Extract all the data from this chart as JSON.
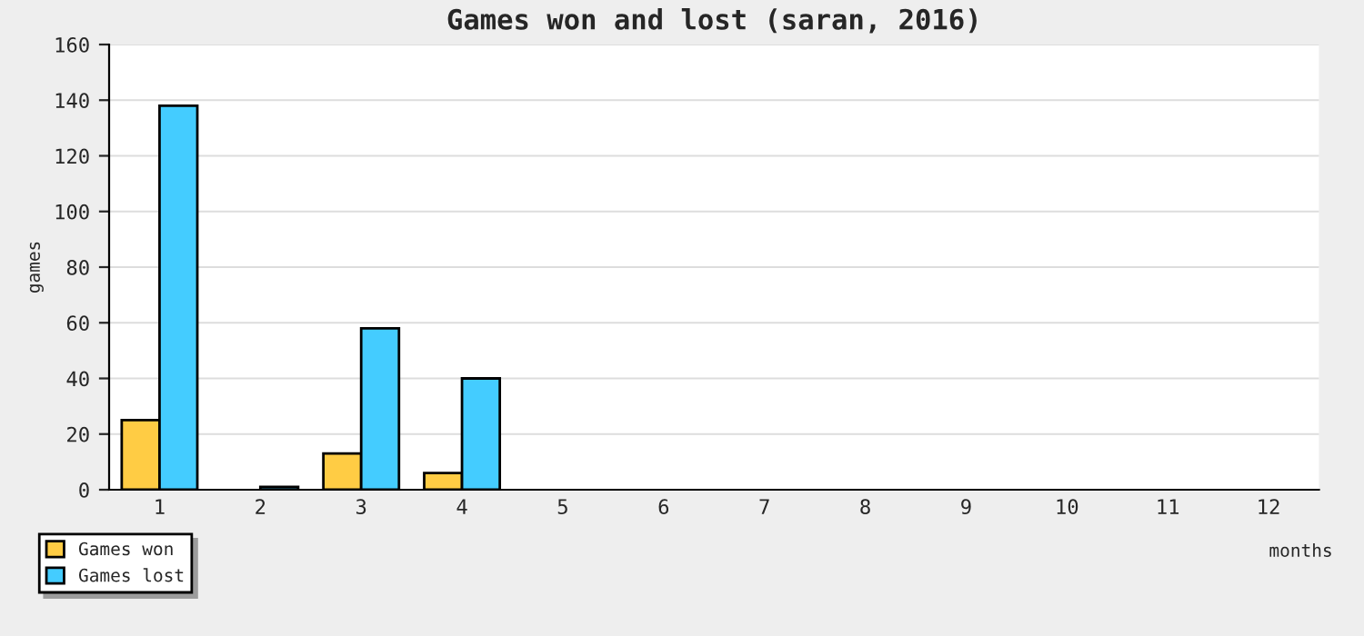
{
  "chart_data": {
    "type": "bar",
    "title": "Games won and lost (saran, 2016)",
    "xlabel": "months",
    "ylabel": "games",
    "categories": [
      "1",
      "2",
      "3",
      "4",
      "5",
      "6",
      "7",
      "8",
      "9",
      "10",
      "11",
      "12"
    ],
    "series": [
      {
        "name": "Games won",
        "color": "#ffcc44",
        "values": [
          25,
          0,
          13,
          6,
          0,
          0,
          0,
          0,
          0,
          0,
          0,
          0
        ]
      },
      {
        "name": "Games lost",
        "color": "#44ccff",
        "values": [
          138,
          1,
          58,
          40,
          0,
          0,
          0,
          0,
          0,
          0,
          0,
          0
        ]
      }
    ],
    "ylim": [
      0,
      160
    ],
    "yticks": [
      0,
      20,
      40,
      60,
      80,
      100,
      120,
      140,
      160
    ],
    "grid": "y",
    "legend": "bottom left"
  }
}
